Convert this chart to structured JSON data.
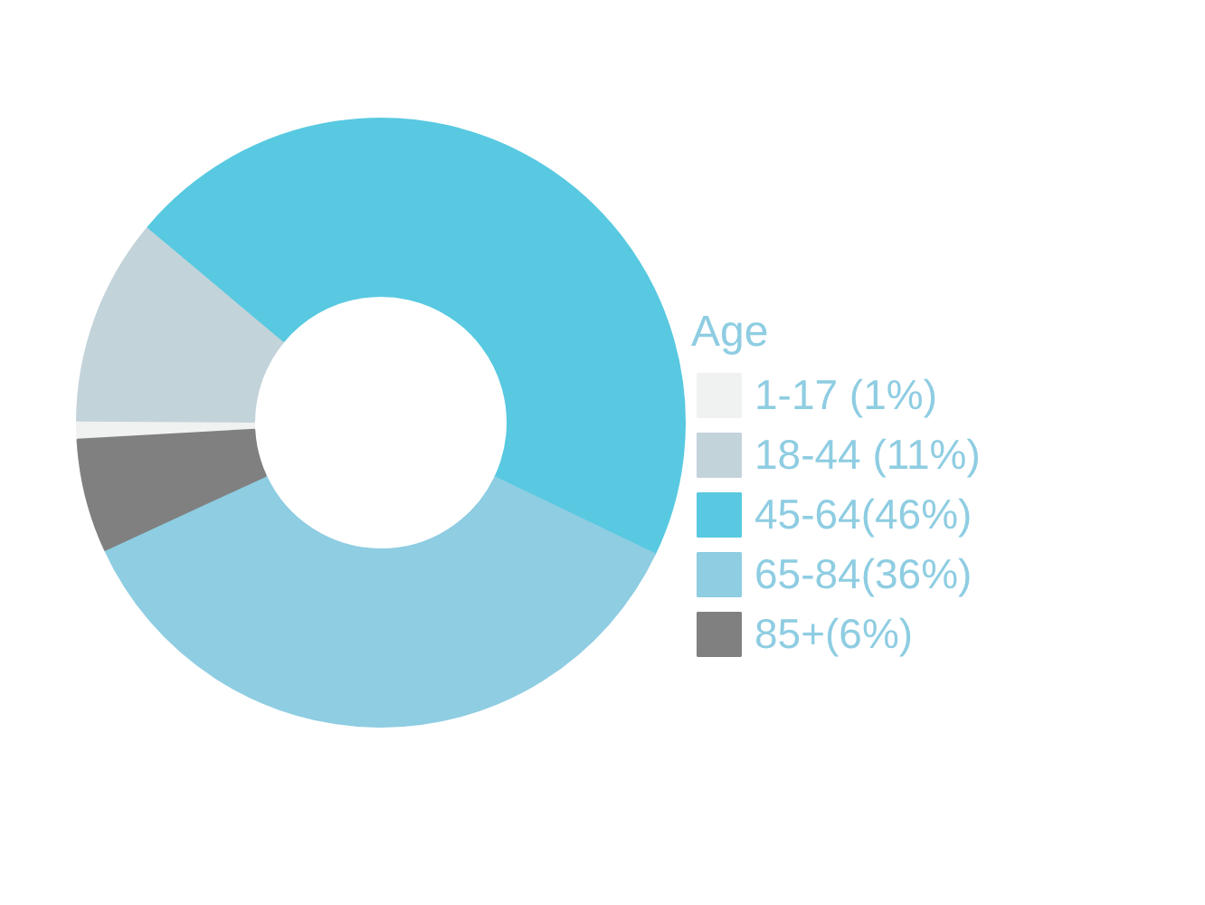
{
  "chart_data": {
    "type": "donut",
    "legend_title": "Age",
    "legend": "right",
    "categories": [
      "1-17 (1%)",
      "18-44 (11%)",
      "45-64(46%)",
      "65-84(36%)",
      "85+(6%)"
    ],
    "values": [
      1,
      11,
      46,
      36,
      6
    ],
    "colors": [
      "#f0f1f1",
      "#c3d3da",
      "#58c9e1",
      "#8ecde2",
      "#808080"
    ]
  }
}
